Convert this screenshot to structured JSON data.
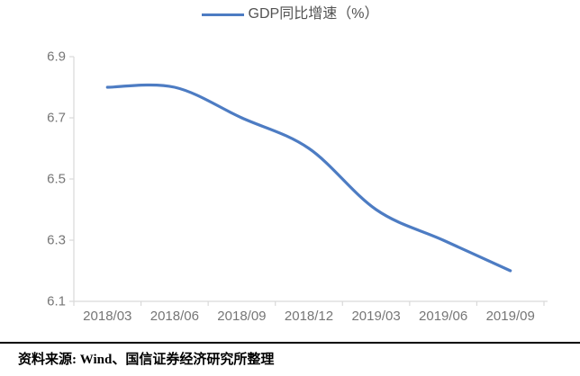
{
  "legend": {
    "label": "GDP同比增速（%）"
  },
  "chart_data": {
    "type": "line",
    "title": "",
    "xlabel": "",
    "ylabel": "",
    "categories": [
      "2018/03",
      "2018/06",
      "2018/09",
      "2018/12",
      "2019/03",
      "2019/06",
      "2019/09"
    ],
    "series": [
      {
        "name": "GDP同比增速（%）",
        "values": [
          6.8,
          6.8,
          6.7,
          6.6,
          6.4,
          6.3,
          6.2
        ]
      }
    ],
    "ylim": [
      6.1,
      6.9
    ],
    "yticks": [
      "6.9",
      "6.7",
      "6.5",
      "6.3",
      "6.1"
    ],
    "grid": false,
    "legend_position": "top-center",
    "smooth": true,
    "colors": {
      "line": "#4D7CC3",
      "axis": "#D9D9D9",
      "tick_label": "#767676",
      "legend_text": "#525252"
    }
  },
  "footer": {
    "source": "资料来源: Wind、国信证券经济研究所整理"
  }
}
